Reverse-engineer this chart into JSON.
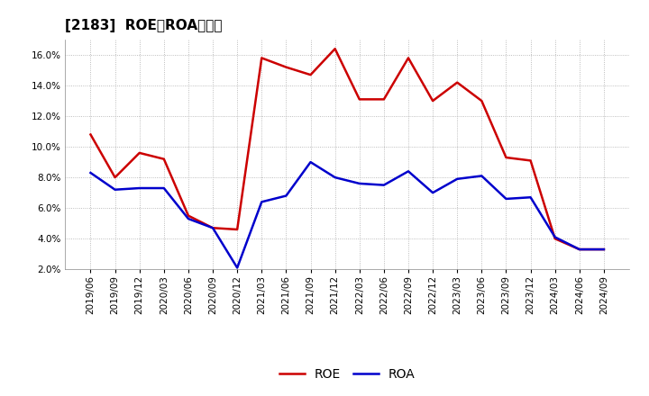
{
  "title": "[2183]  ROE、ROAの推移",
  "roe_dates": [
    "2019/06",
    "2019/09",
    "2019/12",
    "2020/03",
    "2020/06",
    "2020/09",
    "2020/12",
    "2021/03",
    "2021/06",
    "2021/09",
    "2021/12",
    "2022/03",
    "2022/06",
    "2022/09",
    "2022/12",
    "2023/03",
    "2023/06",
    "2023/09",
    "2023/12",
    "2024/03",
    "2024/06",
    "2024/09"
  ],
  "roe_values": [
    10.8,
    8.0,
    9.6,
    9.2,
    5.5,
    4.7,
    4.6,
    15.8,
    15.2,
    14.7,
    16.4,
    13.1,
    13.1,
    15.8,
    13.0,
    14.2,
    13.0,
    9.3,
    9.1,
    4.0,
    3.3,
    3.3
  ],
  "roa_dates": [
    "2019/06",
    "2019/09",
    "2019/12",
    "2020/03",
    "2020/06",
    "2020/09",
    "2020/12",
    "2021/03",
    "2021/06",
    "2021/09",
    "2021/12",
    "2022/03",
    "2022/06",
    "2022/09",
    "2022/12",
    "2023/03",
    "2023/06",
    "2023/09",
    "2023/12",
    "2024/03",
    "2024/06",
    "2024/09"
  ],
  "roa_values": [
    8.3,
    7.2,
    7.3,
    7.3,
    5.3,
    4.7,
    2.1,
    6.4,
    6.8,
    9.0,
    8.0,
    7.6,
    7.5,
    8.4,
    7.0,
    7.9,
    8.1,
    6.6,
    6.7,
    4.1,
    3.3,
    3.3
  ],
  "roe_color": "#cc0000",
  "roa_color": "#0000cc",
  "ylim": [
    2.0,
    17.0
  ],
  "yticks": [
    2.0,
    4.0,
    6.0,
    8.0,
    10.0,
    12.0,
    14.0,
    16.0
  ],
  "background_color": "#ffffff",
  "grid_color": "#aaaaaa",
  "title_fontsize": 11,
  "legend_fontsize": 10,
  "tick_fontsize": 7.5
}
